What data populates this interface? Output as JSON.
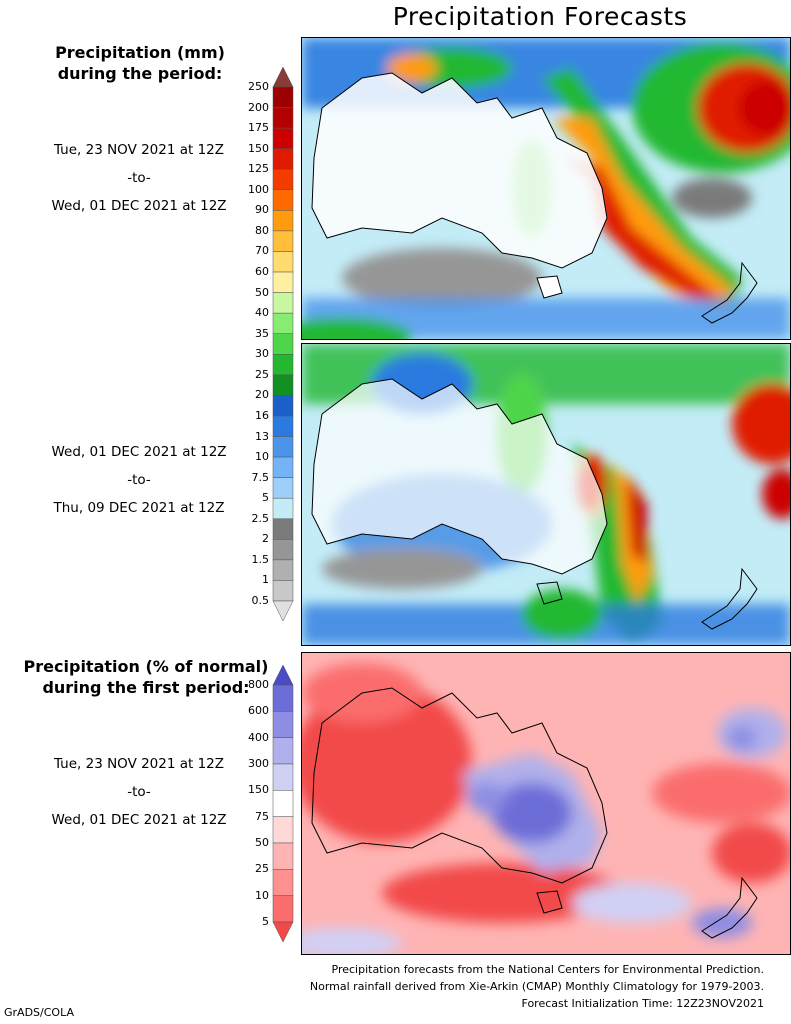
{
  "title": "Precipitation Forecasts",
  "mm_legend": {
    "heading_line1": "Precipitation (mm)",
    "heading_line2": "during the period:",
    "ticks": [
      "250",
      "200",
      "175",
      "150",
      "125",
      "100",
      "90",
      "80",
      "70",
      "60",
      "50",
      "40",
      "35",
      "30",
      "25",
      "20",
      "16",
      "13",
      "10",
      "7.5",
      "5",
      "2.5",
      "2",
      "1.5",
      "1",
      "0.5"
    ],
    "colors": [
      "#8b3b35",
      "#9c0000",
      "#b30000",
      "#cc0000",
      "#e01a00",
      "#f23c00",
      "#ff6a00",
      "#ff9b0d",
      "#ffbf3d",
      "#ffdb70",
      "#fff0a0",
      "#c8f7a0",
      "#88ec72",
      "#4ed54a",
      "#23b830",
      "#109020",
      "#1d5fc8",
      "#2a7ae0",
      "#4a94ec",
      "#74b3f5",
      "#9ccff9",
      "#c3ecf7",
      "#7a7a7a",
      "#969696",
      "#b0b0b0",
      "#c8c8c8",
      "#e0e0e0"
    ]
  },
  "pct_legend": {
    "heading_line1": "Precipitation (% of normal)",
    "heading_line2": "during the first period:",
    "ticks": [
      "800",
      "600",
      "400",
      "300",
      "150",
      "75",
      "50",
      "25",
      "10",
      "5"
    ],
    "colors": [
      "#4b4bc8",
      "#6d6dd8",
      "#8d8de3",
      "#b0b0ec",
      "#d0d0f5",
      "#ffffff",
      "#ffd8d8",
      "#ffb4b4",
      "#ff9090",
      "#fb6d6d",
      "#f24848"
    ]
  },
  "period1": {
    "start": "Tue, 23 NOV 2021 at 12Z",
    "sep": "-to-",
    "end": "Wed, 01 DEC 2021 at 12Z"
  },
  "period2": {
    "start": "Wed, 01 DEC 2021 at 12Z",
    "sep": "-to-",
    "end": "Thu, 09 DEC 2021 at 12Z"
  },
  "period3": {
    "start": "Tue, 23 NOV 2021 at 12Z",
    "sep": "-to-",
    "end": "Wed, 01 DEC 2021 at 12Z"
  },
  "credits": {
    "line1": "Precipitation forecasts from the National Centers for Environmental Prediction.",
    "line2": "Normal rainfall derived from Xie-Arkin (CMAP) Monthly Climatology for 1979-2003.",
    "line3": "Forecast Initialization Time: 12Z23NOV2021"
  },
  "software": "GrADS/COLA"
}
